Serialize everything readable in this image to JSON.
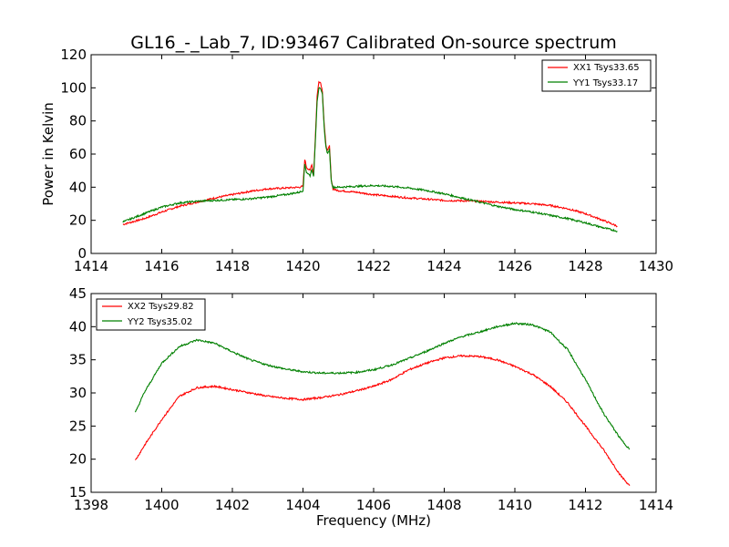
{
  "chart_data": [
    {
      "type": "line",
      "title": "GL16_-_Lab_7, ID:93467 Calibrated On-source spectrum",
      "xlabel": "",
      "ylabel": "Power in Kelvin",
      "xlim": [
        1414,
        1430
      ],
      "ylim": [
        0,
        120
      ],
      "xticks": [
        1414,
        1416,
        1418,
        1420,
        1422,
        1424,
        1426,
        1428,
        1430
      ],
      "yticks": [
        0,
        20,
        40,
        60,
        80,
        100,
        120
      ],
      "grid": false,
      "legend_position": "top-right",
      "series": [
        {
          "name": "XX1 Tsys33.65",
          "color": "#ff0000",
          "x": [
            1414.9,
            1415.5,
            1416.0,
            1416.5,
            1417.0,
            1417.5,
            1418.0,
            1418.5,
            1419.0,
            1419.5,
            1419.9,
            1420.0,
            1420.05,
            1420.1,
            1420.2,
            1420.25,
            1420.3,
            1420.35,
            1420.4,
            1420.45,
            1420.5,
            1420.55,
            1420.6,
            1420.65,
            1420.7,
            1420.75,
            1420.8,
            1420.85,
            1420.9,
            1421.0,
            1421.5,
            1422.0,
            1422.5,
            1423.0,
            1423.5,
            1424.0,
            1424.5,
            1425.0,
            1425.5,
            1426.0,
            1426.5,
            1427.0,
            1427.5,
            1428.0,
            1428.5,
            1428.9
          ],
          "values": [
            17.5,
            21,
            25,
            28.5,
            31,
            33.5,
            35.5,
            37.5,
            39,
            39.5,
            40,
            40.5,
            57,
            52,
            50,
            54,
            47,
            70,
            95,
            104,
            103,
            98,
            78,
            65,
            62,
            65,
            45,
            39,
            38.5,
            38,
            37,
            35.5,
            34.5,
            33.5,
            32.8,
            32,
            31.8,
            31.5,
            31,
            30.5,
            30,
            29,
            27,
            24,
            20,
            16.5
          ]
        },
        {
          "name": "YY1 Tsys33.17",
          "color": "#008000",
          "x": [
            1414.9,
            1415.5,
            1416.0,
            1416.5,
            1417.0,
            1417.5,
            1418.0,
            1418.5,
            1419.0,
            1419.5,
            1419.9,
            1420.0,
            1420.05,
            1420.1,
            1420.2,
            1420.25,
            1420.3,
            1420.35,
            1420.4,
            1420.45,
            1420.5,
            1420.55,
            1420.6,
            1420.65,
            1420.7,
            1420.75,
            1420.8,
            1420.85,
            1420.9,
            1421.0,
            1421.5,
            1422.0,
            1422.5,
            1423.0,
            1423.5,
            1424.0,
            1424.5,
            1425.0,
            1425.5,
            1426.0,
            1426.5,
            1427.0,
            1427.5,
            1428.0,
            1428.5,
            1428.9
          ],
          "values": [
            19,
            24,
            28,
            30.5,
            31.5,
            32,
            32.5,
            33,
            34,
            35.5,
            37,
            38,
            54,
            49,
            47,
            51,
            46,
            68,
            92,
            100,
            99,
            96,
            76,
            64,
            60,
            63,
            44,
            40,
            40,
            40,
            40.5,
            41,
            40.5,
            39.5,
            38,
            36,
            33.5,
            31,
            28.5,
            26.5,
            25,
            23,
            21,
            18.5,
            15.5,
            13.5
          ]
        }
      ]
    },
    {
      "type": "line",
      "title": "",
      "xlabel": "Frequency (MHz)",
      "ylabel": "",
      "xlim": [
        1398,
        1414
      ],
      "ylim": [
        15,
        45
      ],
      "xticks": [
        1398,
        1400,
        1402,
        1404,
        1406,
        1408,
        1410,
        1412,
        1414
      ],
      "yticks": [
        15,
        20,
        25,
        30,
        35,
        40,
        45
      ],
      "grid": false,
      "legend_position": "top-left",
      "series": [
        {
          "name": "XX2 Tsys29.82",
          "color": "#ff0000",
          "x": [
            1399.25,
            1399.5,
            1400.0,
            1400.5,
            1401.0,
            1401.5,
            1402.0,
            1402.5,
            1403.0,
            1403.5,
            1404.0,
            1404.5,
            1405.0,
            1405.5,
            1406.0,
            1406.5,
            1407.0,
            1407.5,
            1408.0,
            1408.5,
            1409.0,
            1409.5,
            1410.0,
            1410.5,
            1411.0,
            1411.5,
            1412.0,
            1412.5,
            1413.0,
            1413.25
          ],
          "values": [
            19.8,
            22,
            26,
            29.5,
            30.8,
            31,
            30.5,
            30,
            29.5,
            29.2,
            29,
            29.3,
            29.7,
            30.3,
            31,
            32,
            33.5,
            34.5,
            35.3,
            35.6,
            35.5,
            35,
            34,
            32.8,
            31,
            28.5,
            25,
            21.5,
            17.5,
            16
          ]
        },
        {
          "name": "YY2 Tsys35.02",
          "color": "#008000",
          "x": [
            1399.25,
            1399.5,
            1400.0,
            1400.5,
            1401.0,
            1401.5,
            1402.0,
            1402.5,
            1403.0,
            1403.5,
            1404.0,
            1404.5,
            1405.0,
            1405.5,
            1406.0,
            1406.5,
            1407.0,
            1407.5,
            1408.0,
            1408.5,
            1409.0,
            1409.5,
            1410.0,
            1410.5,
            1411.0,
            1411.5,
            1412.0,
            1412.5,
            1413.0,
            1413.25
          ],
          "values": [
            27,
            30,
            34.5,
            37,
            38,
            37.5,
            36.2,
            35,
            34.2,
            33.6,
            33.2,
            33,
            33,
            33.1,
            33.5,
            34.2,
            35.2,
            36.3,
            37.5,
            38.5,
            39.2,
            40,
            40.5,
            40.3,
            39.2,
            36.5,
            32,
            27,
            23,
            21.5
          ]
        }
      ]
    }
  ]
}
